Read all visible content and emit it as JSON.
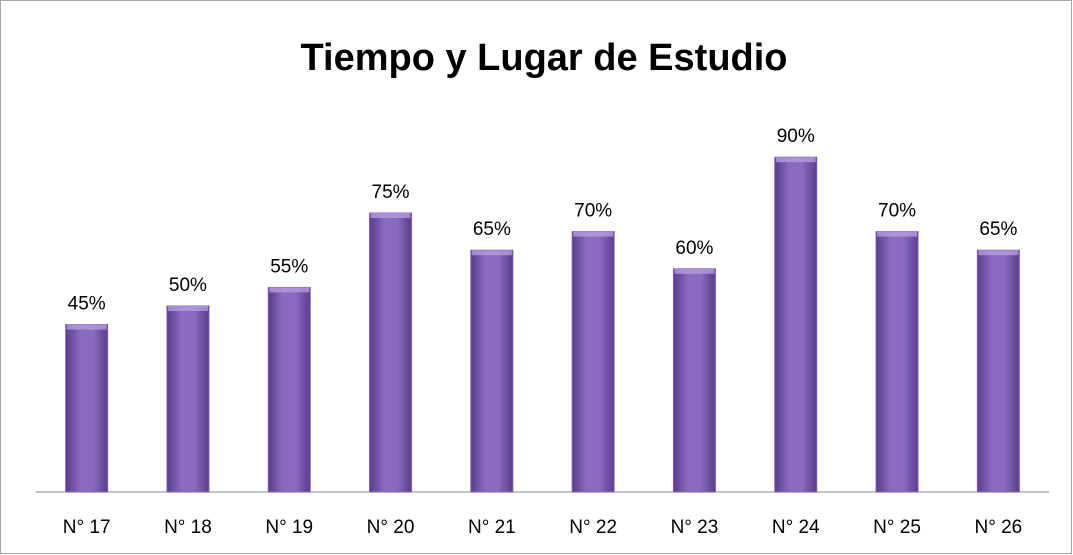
{
  "chart_data": {
    "type": "bar",
    "title": "Tiempo y Lugar de Estudio",
    "categories": [
      "N° 17",
      "N° 18",
      "N° 19",
      "N° 20",
      "N° 21",
      "N° 22",
      "N° 23",
      "N° 24",
      "N° 25",
      "N° 26"
    ],
    "values": [
      45,
      50,
      55,
      75,
      65,
      70,
      60,
      90,
      70,
      65
    ],
    "value_labels": [
      "45%",
      "50%",
      "55%",
      "75%",
      "65%",
      "70%",
      "60%",
      "90%",
      "70%",
      "65%"
    ],
    "color": "#7f5fb4",
    "ylim": [
      0,
      100
    ]
  }
}
